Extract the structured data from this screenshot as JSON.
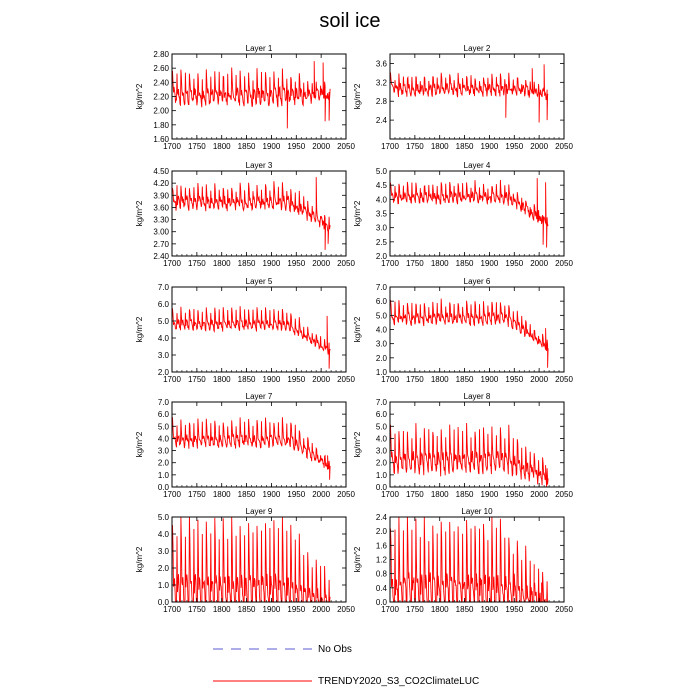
{
  "figure": {
    "title": "soil ice"
  },
  "legend": [
    {
      "label": "No Obs",
      "color": "#5b5bd6",
      "style": "dashed"
    },
    {
      "label": "TRENDY2020_S3_CO2ClimateLUC",
      "color": "#ff0000",
      "style": "solid"
    }
  ],
  "chart_data": [
    {
      "type": "line",
      "title": "Layer 1",
      "ylabel": "kg/m^2",
      "xlim": [
        1700,
        2050
      ],
      "ylim": [
        1.6,
        2.8
      ],
      "xticks": [
        1700,
        1750,
        1800,
        1850,
        1900,
        1950,
        2000,
        2050
      ],
      "yticks": [
        "1.60",
        "1.80",
        "2.00",
        "2.20",
        "2.40",
        "2.60",
        "2.80"
      ],
      "series": [
        {
          "name": "TRENDY2020_S3_CO2ClimateLUC",
          "color": "#ff0000",
          "profile": {
            "start": 1701,
            "end": 2018,
            "base": 2.28,
            "amp": 0.26,
            "period": 8.5,
            "decline_from": 1940,
            "decline_to": 2.25,
            "noise": 0.07,
            "spikes": [
              [
                1932,
                1.75
              ],
              [
                1986,
                2.7
              ],
              [
                2004,
                2.68
              ],
              [
                2008,
                1.85
              ],
              [
                2016,
                1.86
              ]
            ]
          }
        }
      ]
    },
    {
      "type": "line",
      "title": "Layer 2",
      "ylabel": "kg/m^2",
      "xlim": [
        1700,
        2050
      ],
      "ylim": [
        2.0,
        3.8
      ],
      "xticks": [
        1700,
        1750,
        1800,
        1850,
        1900,
        1950,
        2000,
        2050
      ],
      "yticks": [
        "2.4",
        "2.8",
        "3.2",
        "3.6"
      ],
      "series": [
        {
          "name": "TRENDY2020_S3_CO2ClimateLUC",
          "color": "#ff0000",
          "profile": {
            "start": 1701,
            "end": 2018,
            "base": 3.12,
            "amp": 0.24,
            "period": 8.5,
            "decline_from": 1950,
            "decline_to": 2.95,
            "noise": 0.08,
            "spikes": [
              [
                1933,
                2.45
              ],
              [
                1986,
                3.5
              ],
              [
                2000,
                2.35
              ],
              [
                2010,
                3.58
              ],
              [
                2016,
                2.4
              ]
            ]
          }
        }
      ]
    },
    {
      "type": "line",
      "title": "Layer 3",
      "ylabel": "kg/m^2",
      "xlim": [
        1700,
        2050
      ],
      "ylim": [
        2.4,
        4.5
      ],
      "xticks": [
        1700,
        1750,
        1800,
        1850,
        1900,
        1950,
        2000,
        2050
      ],
      "yticks": [
        "2.40",
        "2.70",
        "3.00",
        "3.30",
        "3.60",
        "3.90",
        "4.20",
        "4.50"
      ],
      "series": [
        {
          "name": "TRENDY2020_S3_CO2ClimateLUC",
          "color": "#ff0000",
          "profile": {
            "start": 1701,
            "end": 2018,
            "base": 3.82,
            "amp": 0.34,
            "period": 8.5,
            "decline_from": 1935,
            "decline_to": 3.15,
            "noise": 0.1,
            "spikes": [
              [
                1990,
                4.35
              ],
              [
                2008,
                2.55
              ],
              [
                2014,
                2.7
              ]
            ]
          }
        }
      ]
    },
    {
      "type": "line",
      "title": "Layer 4",
      "ylabel": "kg/m^2",
      "xlim": [
        1700,
        2050
      ],
      "ylim": [
        2.0,
        5.0
      ],
      "xticks": [
        1700,
        1750,
        1800,
        1850,
        1900,
        1950,
        2000,
        2050
      ],
      "yticks": [
        "2.0",
        "2.5",
        "3.0",
        "3.5",
        "4.0",
        "4.5",
        "5.0"
      ],
      "series": [
        {
          "name": "TRENDY2020_S3_CO2ClimateLUC",
          "color": "#ff0000",
          "profile": {
            "start": 1701,
            "end": 2018,
            "base": 4.18,
            "amp": 0.4,
            "period": 8.5,
            "decline_from": 1935,
            "decline_to": 3.2,
            "noise": 0.12,
            "spikes": [
              [
                1996,
                4.75
              ],
              [
                2008,
                2.4
              ],
              [
                2013,
                4.6
              ],
              [
                2015,
                2.3
              ]
            ]
          }
        }
      ]
    },
    {
      "type": "line",
      "title": "Layer 5",
      "ylabel": "kg/m^2",
      "xlim": [
        1700,
        2050
      ],
      "ylim": [
        2.0,
        7.0
      ],
      "xticks": [
        1700,
        1750,
        1800,
        1850,
        1900,
        1950,
        2000,
        2050
      ],
      "yticks": [
        "2.0",
        "3.0",
        "4.0",
        "5.0",
        "6.0",
        "7.0"
      ],
      "series": [
        {
          "name": "TRENDY2020_S3_CO2ClimateLUC",
          "color": "#ff0000",
          "profile": {
            "start": 1701,
            "end": 2018,
            "base": 5.0,
            "amp": 0.75,
            "period": 8.5,
            "decline_from": 1930,
            "decline_to": 3.3,
            "noise": 0.15,
            "spikes": [
              [
                2012,
                5.3
              ],
              [
                2016,
                2.2
              ]
            ]
          }
        }
      ]
    },
    {
      "type": "line",
      "title": "Layer 6",
      "ylabel": "kg/m^2",
      "xlim": [
        1700,
        2050
      ],
      "ylim": [
        1.0,
        7.0
      ],
      "xticks": [
        1700,
        1750,
        1800,
        1850,
        1900,
        1950,
        2000,
        2050
      ],
      "yticks": [
        "1.0",
        "2.0",
        "3.0",
        "4.0",
        "5.0",
        "6.0",
        "7.0"
      ],
      "series": [
        {
          "name": "TRENDY2020_S3_CO2ClimateLUC",
          "color": "#ff0000",
          "profile": {
            "start": 1701,
            "end": 2018,
            "base": 5.05,
            "amp": 0.95,
            "period": 8.5,
            "decline_from": 1935,
            "decline_to": 2.8,
            "noise": 0.2,
            "spikes": [
              [
                2013,
                4.1
              ],
              [
                2017,
                1.3
              ]
            ]
          }
        }
      ]
    },
    {
      "type": "line",
      "title": "Layer 7",
      "ylabel": "kg/m^2",
      "xlim": [
        1700,
        2050
      ],
      "ylim": [
        0.0,
        7.0
      ],
      "xticks": [
        1700,
        1750,
        1800,
        1850,
        1900,
        1950,
        2000,
        2050
      ],
      "yticks": [
        "0.0",
        "1.0",
        "2.0",
        "3.0",
        "4.0",
        "5.0",
        "6.0",
        "7.0"
      ],
      "series": [
        {
          "name": "TRENDY2020_S3_CO2ClimateLUC",
          "color": "#ff0000",
          "profile": {
            "start": 1701,
            "end": 2018,
            "base": 4.2,
            "amp": 1.3,
            "period": 8.5,
            "decline_from": 1940,
            "decline_to": 1.7,
            "noise": 0.25,
            "spikes": [
              [
                2013,
                2.6
              ],
              [
                2017,
                0.6
              ]
            ]
          }
        }
      ]
    },
    {
      "type": "line",
      "title": "Layer 8",
      "ylabel": "kg/m^2",
      "xlim": [
        1700,
        2050
      ],
      "ylim": [
        0.0,
        7.0
      ],
      "xticks": [
        1700,
        1750,
        1800,
        1850,
        1900,
        1950,
        2000,
        2050
      ],
      "yticks": [
        "0.0",
        "1.0",
        "2.0",
        "3.0",
        "4.0",
        "5.0",
        "6.0",
        "7.0"
      ],
      "series": [
        {
          "name": "TRENDY2020_S3_CO2ClimateLUC",
          "color": "#ff0000",
          "profile": {
            "start": 1701,
            "end": 2018,
            "base": 2.7,
            "amp": 2.2,
            "period": 8.5,
            "decline_from": 1935,
            "decline_to": 0.9,
            "noise": 0.4,
            "spikes": [
              [
                2013,
                1.8
              ],
              [
                2017,
                0.2
              ]
            ]
          }
        }
      ]
    },
    {
      "type": "line",
      "title": "Layer 9",
      "ylabel": "kg/m^2",
      "xlim": [
        1700,
        2050
      ],
      "ylim": [
        0.0,
        5.0
      ],
      "xticks": [
        1700,
        1750,
        1800,
        1850,
        1900,
        1950,
        2000,
        2050
      ],
      "yticks": [
        "0.0",
        "1.0",
        "2.0",
        "3.0",
        "4.0",
        "5.0"
      ],
      "series": [
        {
          "name": "TRENDY2020_S3_CO2ClimateLUC",
          "color": "#ff0000",
          "profile": {
            "start": 1701,
            "end": 2018,
            "base": 1.5,
            "amp": 3.3,
            "period": 8.5,
            "decline_from": 1925,
            "decline_to": 0.25,
            "noise": 0.35,
            "spikes": [
              [
                2017,
                0.05
              ]
            ]
          }
        }
      ]
    },
    {
      "type": "line",
      "title": "Layer 10",
      "ylabel": "kg/m^2",
      "xlim": [
        1700,
        2050
      ],
      "ylim": [
        0.0,
        2.4
      ],
      "xticks": [
        1700,
        1750,
        1800,
        1850,
        1900,
        1950,
        2000,
        2050
      ],
      "yticks": [
        "0.0",
        "0.4",
        "0.8",
        "1.2",
        "1.6",
        "2.0",
        "2.4"
      ],
      "series": [
        {
          "name": "TRENDY2020_S3_CO2ClimateLUC",
          "color": "#ff0000",
          "profile": {
            "start": 1701,
            "end": 2018,
            "base": 0.75,
            "amp": 1.5,
            "period": 8.5,
            "decline_from": 1920,
            "decline_to": 0.08,
            "noise": 0.2,
            "spikes": [
              [
                1950,
                0.8
              ],
              [
                1990,
                0.45
              ],
              [
                2005,
                0.55
              ],
              [
                2017,
                0.0
              ]
            ]
          }
        }
      ]
    }
  ]
}
